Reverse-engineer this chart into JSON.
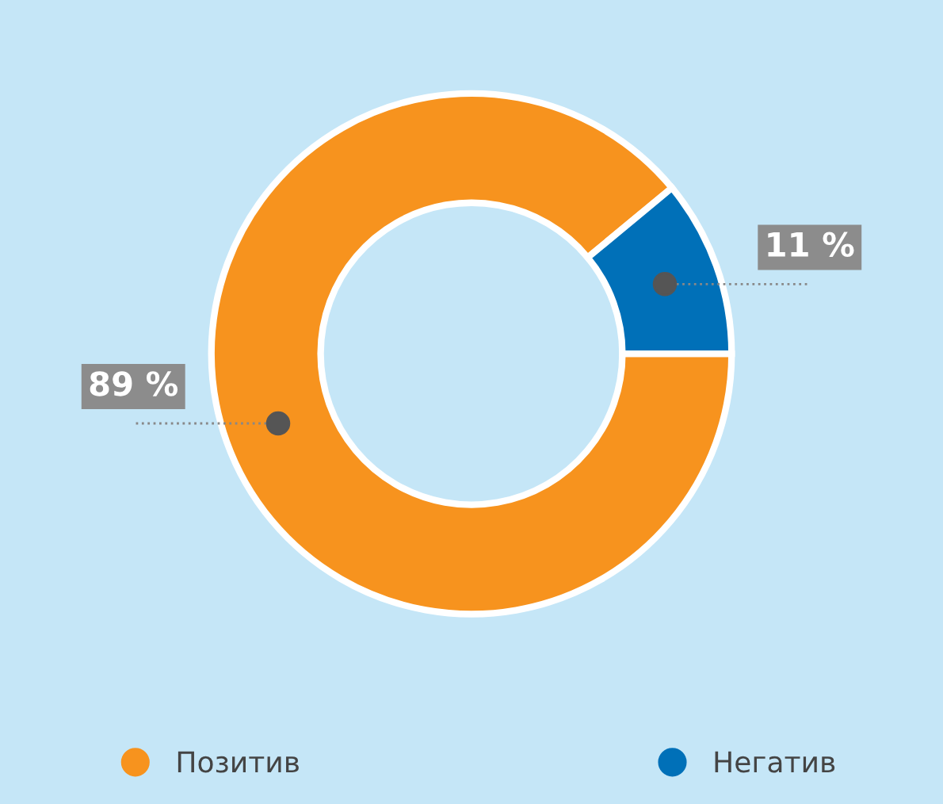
{
  "chart_data": {
    "type": "donut",
    "categories": [
      "Позитив",
      "Негатив"
    ],
    "values": [
      89,
      11
    ],
    "colors": [
      "#f7931e",
      "#0070b8"
    ],
    "value_labels": [
      "89 %",
      "11 %"
    ],
    "legend": "bottom"
  }
}
